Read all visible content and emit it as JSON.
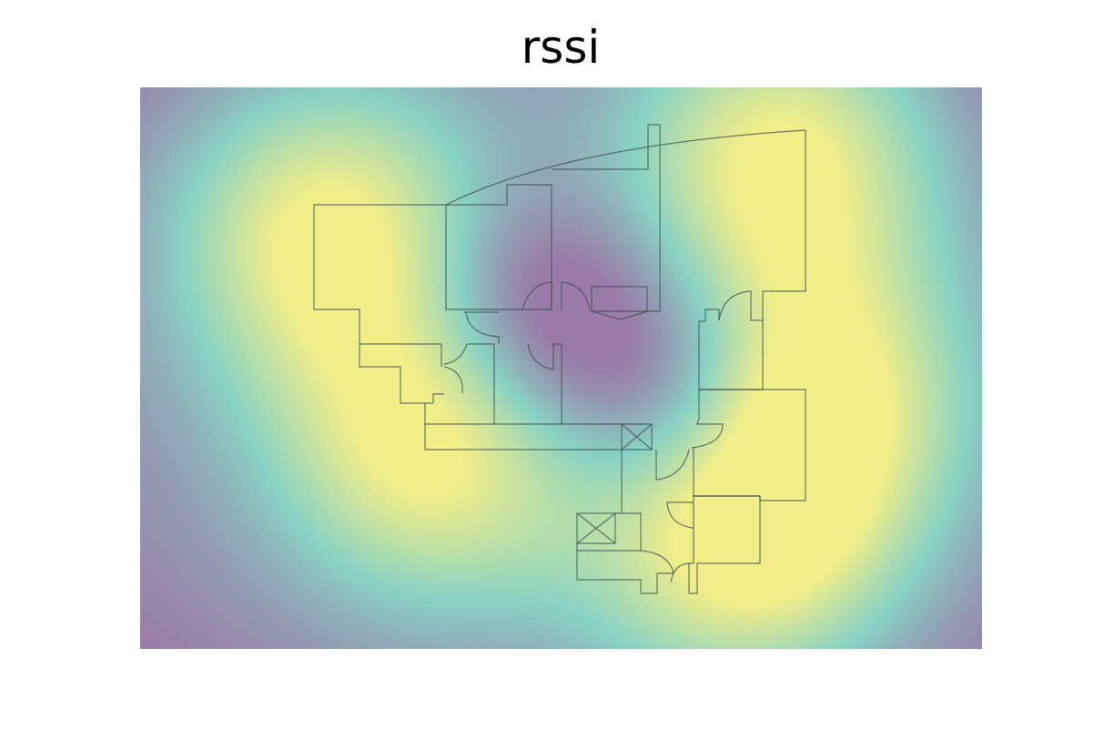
{
  "chart_data": {
    "type": "heatmap",
    "title": "rssi",
    "xlabel": "",
    "ylabel": "",
    "grid": false,
    "axes_visible": false,
    "colormap": "viridis",
    "overlay": "floor-plan"
  },
  "colors": {
    "low": "#9a7aa8",
    "mid": "#88d2c4",
    "high": "#f2ee8a"
  }
}
